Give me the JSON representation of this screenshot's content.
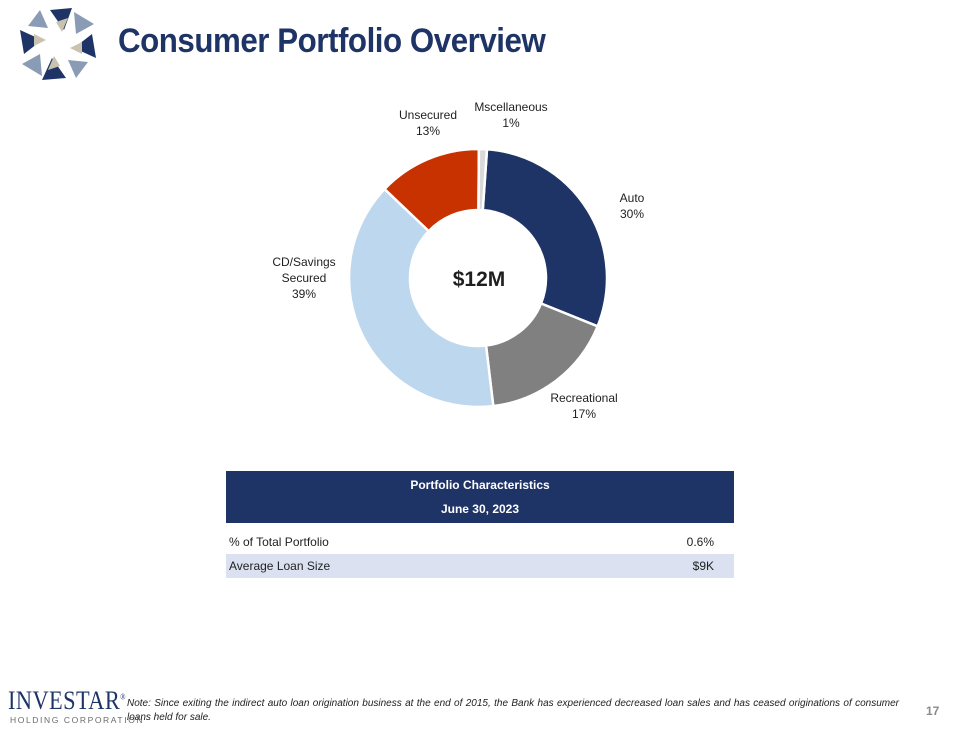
{
  "slide": {
    "title": "Consumer Portfolio Overview",
    "page_number": "17"
  },
  "colors": {
    "navy": "#1f3466",
    "gray": "#808080",
    "light_blue": "#bdd7ee",
    "red": "#c83200",
    "light_gray": "#d9d9d9"
  },
  "chart_data": {
    "type": "pie",
    "variant": "donut",
    "center_label": "$12M",
    "slices": [
      {
        "name": "Auto",
        "label_lines": [
          "Auto",
          "30%"
        ],
        "value": 30,
        "color": "#1f3466"
      },
      {
        "name": "Recreational",
        "label_lines": [
          "Recreational",
          "17%"
        ],
        "value": 17,
        "color": "#808080"
      },
      {
        "name": "CD/Savings Secured",
        "label_lines": [
          "CD/Savings",
          "Secured",
          "39%"
        ],
        "value": 39,
        "color": "#bdd7ee"
      },
      {
        "name": "Unsecured",
        "label_lines": [
          "Unsecured",
          "13%"
        ],
        "value": 13,
        "color": "#c83200"
      },
      {
        "name": "Mscellaneous",
        "label_lines": [
          "Mscellaneous",
          "1%"
        ],
        "value": 1,
        "color": "#d9d9d9"
      }
    ]
  },
  "table": {
    "header_line1": "Portfolio Characteristics",
    "header_line2": "June 30, 2023",
    "rows": [
      {
        "label": "% of Total Portfolio",
        "value": "0.6%"
      },
      {
        "label": "Average Loan Size",
        "value": "$9K"
      }
    ]
  },
  "footer": {
    "brand": "INVESTAR",
    "brand_mark": "®",
    "brand_sub": "HOLDING CORPORATION",
    "note": "Note: Since exiting the indirect auto loan origination business at the end of 2015, the Bank has experienced decreased loan sales and has ceased originations of consumer loans held for sale."
  }
}
